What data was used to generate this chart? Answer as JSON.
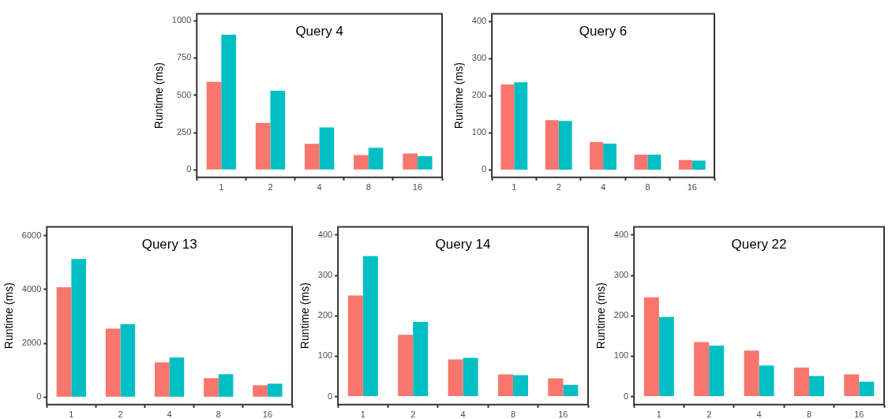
{
  "chart_data": [
    {
      "type": "bar",
      "title": "Query 4",
      "ylabel": "Runtime (ms)",
      "categories": [
        "1",
        "2",
        "4",
        "8",
        "16"
      ],
      "ylim": [
        -50,
        1045
      ],
      "yticks": [
        0,
        250,
        500,
        750,
        1000
      ],
      "series": [
        {
          "color": "#f8766d",
          "values": [
            590,
            315,
            175,
            100,
            110
          ]
        },
        {
          "color": "#00bfc4",
          "values": [
            905,
            530,
            285,
            148,
            92
          ]
        }
      ]
    },
    {
      "type": "bar",
      "title": "Query 6",
      "ylabel": "Runtime (ms)",
      "categories": [
        "1",
        "2",
        "4",
        "8",
        "16"
      ],
      "ylim": [
        -20,
        420
      ],
      "yticks": [
        0,
        100,
        200,
        300,
        400
      ],
      "series": [
        {
          "color": "#f8766d",
          "values": [
            230,
            134,
            75,
            41,
            27
          ]
        },
        {
          "color": "#00bfc4",
          "values": [
            236,
            132,
            71,
            41,
            25
          ]
        }
      ]
    },
    {
      "type": "bar",
      "title": "Query 13",
      "ylabel": "Runtime (ms)",
      "categories": [
        "1",
        "2",
        "4",
        "8",
        "16"
      ],
      "ylim": [
        -280,
        6320
      ],
      "yticks": [
        0,
        2000,
        4000,
        6000
      ],
      "series": [
        {
          "color": "#f8766d",
          "values": [
            4080,
            2540,
            1290,
            700,
            440
          ]
        },
        {
          "color": "#00bfc4",
          "values": [
            5130,
            2710,
            1470,
            850,
            500
          ]
        }
      ]
    },
    {
      "type": "bar",
      "title": "Query 14",
      "ylabel": "Runtime (ms)",
      "categories": [
        "1",
        "2",
        "4",
        "8",
        "16"
      ],
      "ylim": [
        -20,
        420
      ],
      "yticks": [
        0,
        100,
        200,
        300,
        400
      ],
      "series": [
        {
          "color": "#f8766d",
          "values": [
            250,
            153,
            92,
            55,
            45
          ]
        },
        {
          "color": "#00bfc4",
          "values": [
            348,
            185,
            96,
            53,
            29
          ]
        }
      ]
    },
    {
      "type": "bar",
      "title": "Query 22",
      "ylabel": "Runtime (ms)",
      "categories": [
        "1",
        "2",
        "4",
        "8",
        "16"
      ],
      "ylim": [
        -20,
        420
      ],
      "yticks": [
        0,
        100,
        200,
        300,
        400
      ],
      "series": [
        {
          "color": "#f8766d",
          "values": [
            246,
            135,
            114,
            72,
            55
          ]
        },
        {
          "color": "#00bfc4",
          "values": [
            197,
            126,
            77,
            51,
            37
          ]
        }
      ]
    }
  ]
}
